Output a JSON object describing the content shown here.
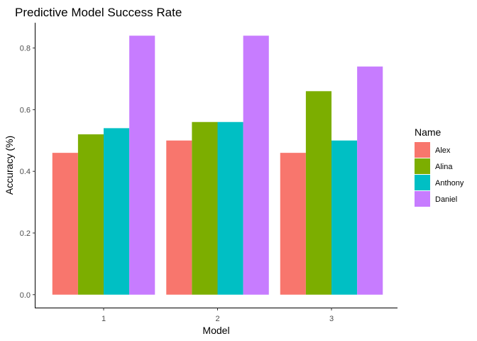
{
  "chart_data": {
    "type": "bar",
    "title": "Predictive Model Success Rate",
    "xlabel": "Model",
    "ylabel": "Accuracy (%)",
    "categories": [
      "1",
      "2",
      "3"
    ],
    "series": [
      {
        "name": "Alex",
        "color": "#F8766D",
        "values": [
          0.46,
          0.5,
          0.46
        ]
      },
      {
        "name": "Alina",
        "color": "#7CAE00",
        "values": [
          0.52,
          0.56,
          0.66
        ]
      },
      {
        "name": "Anthony",
        "color": "#00BFC4",
        "values": [
          0.54,
          0.56,
          0.5
        ]
      },
      {
        "name": "Daniel",
        "color": "#C77CFF",
        "values": [
          0.84,
          0.84,
          0.74
        ]
      }
    ],
    "ylim": [
      -0.042,
      0.882
    ],
    "yticks": [
      "0.0",
      "0.2",
      "0.4",
      "0.6",
      "0.8"
    ],
    "legend": {
      "title": "Name",
      "position": "right"
    },
    "grid": false
  }
}
